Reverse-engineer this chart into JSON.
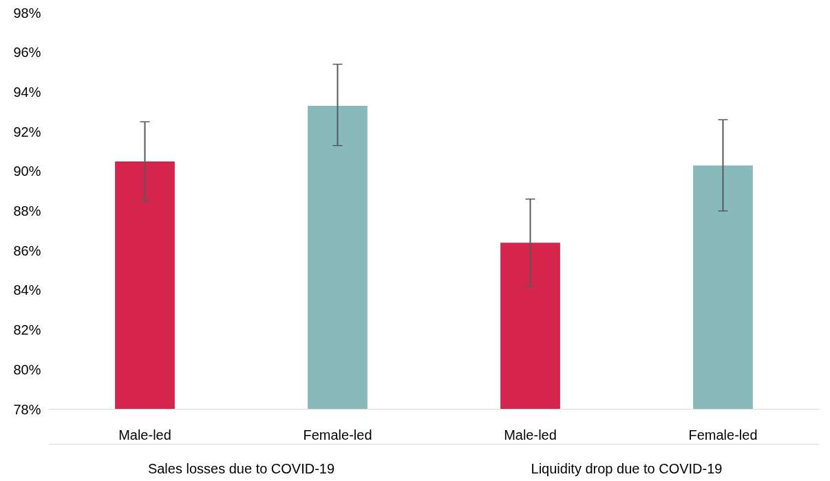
{
  "chart_data": {
    "type": "bar",
    "categories": [
      "Male-led",
      "Female-led",
      "Male-led",
      "Female-led"
    ],
    "values": [
      90.5,
      93.3,
      86.4,
      90.3
    ],
    "colors": [
      "#d6254d",
      "#88b9bb",
      "#d6254d",
      "#88b9bb"
    ],
    "errors": [
      [
        88.5,
        92.5
      ],
      [
        91.3,
        95.4
      ],
      [
        84.2,
        88.6
      ],
      [
        88.0,
        92.6
      ]
    ],
    "ylim": [
      78,
      98
    ],
    "yticks": [
      {
        "value": 78,
        "label": "78%"
      },
      {
        "value": 80,
        "label": "80%"
      },
      {
        "value": 82,
        "label": "82%"
      },
      {
        "value": 84,
        "label": "84%"
      },
      {
        "value": 86,
        "label": "86%"
      },
      {
        "value": 88,
        "label": "88%"
      },
      {
        "value": 90,
        "label": "90%"
      },
      {
        "value": 92,
        "label": "92%"
      },
      {
        "value": 94,
        "label": "94%"
      },
      {
        "value": 96,
        "label": "96%"
      },
      {
        "value": 98,
        "label": "98%"
      }
    ],
    "annotations": [
      "Sales losses due to COVID-19",
      "Liquidity drop due to COVID-19"
    ],
    "grid": false
  }
}
